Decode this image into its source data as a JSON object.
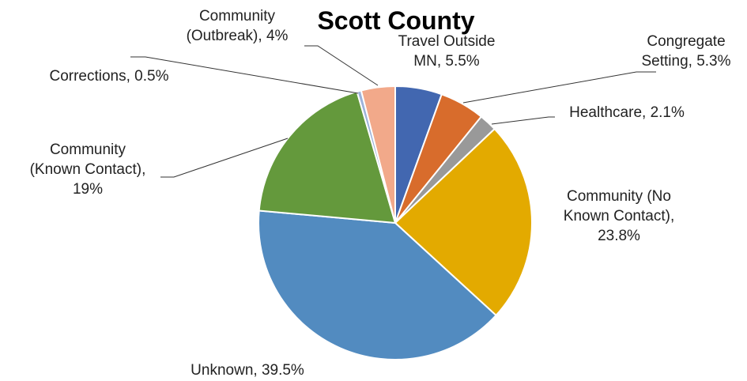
{
  "chart_data": {
    "type": "pie",
    "title": "Scott County",
    "slices": [
      {
        "label": "Travel Outside MN",
        "value": 5.5,
        "display": "5.5%",
        "color": "#4267B0"
      },
      {
        "label": "Congregate Setting",
        "value": 5.3,
        "display": "5.3%",
        "color": "#D86C2C"
      },
      {
        "label": "Healthcare",
        "value": 2.1,
        "display": "2.1%",
        "color": "#999999"
      },
      {
        "label": "Community (No Known Contact)",
        "value": 23.8,
        "display": "23.8%",
        "color": "#E3AA00"
      },
      {
        "label": "Unknown",
        "value": 39.5,
        "display": "39.5%",
        "color": "#528BC0"
      },
      {
        "label": "Community (Known Contact)",
        "value": 19,
        "display": "19%",
        "color": "#64993C"
      },
      {
        "label": "Corrections",
        "value": 0.5,
        "display": "0.5%",
        "color": "#9DB3DA"
      },
      {
        "label": "Community (Outbreak)",
        "value": 4,
        "display": "4%",
        "color": "#F2A98A"
      }
    ],
    "label_lines": [
      [
        "Travel Outside",
        "MN, 5.5%"
      ],
      [
        "Congregate",
        "Setting, 5.3%"
      ],
      [
        "Healthcare, 2.1%"
      ],
      [
        "Community (No",
        "Known Contact),",
        "23.8%"
      ],
      [
        "Unknown, 39.5%"
      ],
      [
        "Community",
        "(Known Contact),",
        "19%"
      ],
      [
        "Corrections, 0.5%"
      ],
      [
        "Community",
        "(Outbreak), 4%"
      ]
    ]
  }
}
